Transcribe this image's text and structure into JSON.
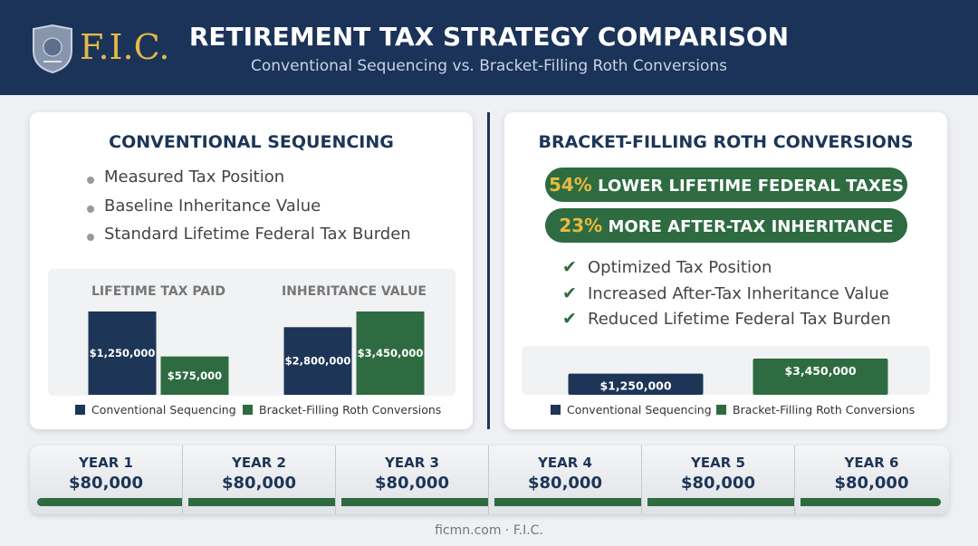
{
  "header": {
    "logo": "F.I.C.",
    "title": "RETIREMENT TAX STRATEGY COMPARISON",
    "subtitle": "Conventional Sequencing vs. Bracket-Filling Roth Conversions"
  },
  "left": {
    "title": "CONVENTIONAL SEQUENCING",
    "bullets": [
      "Measured Tax Position",
      "Baseline Inheritance Value",
      "Standard Lifetime Federal Tax Burden"
    ]
  },
  "right": {
    "title": "BRACKET-FILLING ROTH CONVERSIONS",
    "highlights": [
      {
        "value": "54%",
        "text": "LOWER LIFETIME FEDERAL TAXES"
      },
      {
        "value": "23%",
        "text": "MORE AFTER-TAX INHERITANCE"
      }
    ],
    "checks": [
      "Optimized Tax Position",
      "Increased After-Tax Inheritance Value",
      "Reduced Lifetime Federal Tax Burden"
    ]
  },
  "chart_data": [
    {
      "type": "bar",
      "categories": [
        "LIFETIME TAX PAID",
        "INHERITANCE VALUE"
      ],
      "series": [
        {
          "name": "Conventional Sequencing",
          "color": "#1d3557",
          "values": [
            1250000,
            2800000
          ],
          "value_labels": [
            "$1,250,000",
            "$2,800,000"
          ]
        },
        {
          "name": "Bracket-Filling Roth Conversions",
          "color": "#2e6b40",
          "values": [
            575000,
            3450000
          ],
          "value_labels": [
            "$575,000",
            "$3,450,000"
          ]
        }
      ]
    },
    {
      "type": "bar",
      "series": [
        {
          "name": "Conventional Sequencing",
          "color": "#1d3557",
          "values": [
            1250000
          ],
          "value_labels": [
            "$1,250,000"
          ]
        },
        {
          "name": "Bracket-Filling Roth Conversions",
          "color": "#2e6b40",
          "values": [
            3450000
          ],
          "value_labels": [
            "$3,450,000"
          ]
        }
      ]
    }
  ],
  "timeline": [
    {
      "label": "YEAR 1",
      "value": "$80,000"
    },
    {
      "label": "YEAR 2",
      "value": "$80,000"
    },
    {
      "label": "YEAR 3",
      "value": "$80,000"
    },
    {
      "label": "YEAR 4",
      "value": "$80,000"
    },
    {
      "label": "YEAR 5",
      "value": "$80,000"
    },
    {
      "label": "YEAR 6",
      "value": "$80,000"
    }
  ],
  "footer": "ficmn.com · F.I.C."
}
